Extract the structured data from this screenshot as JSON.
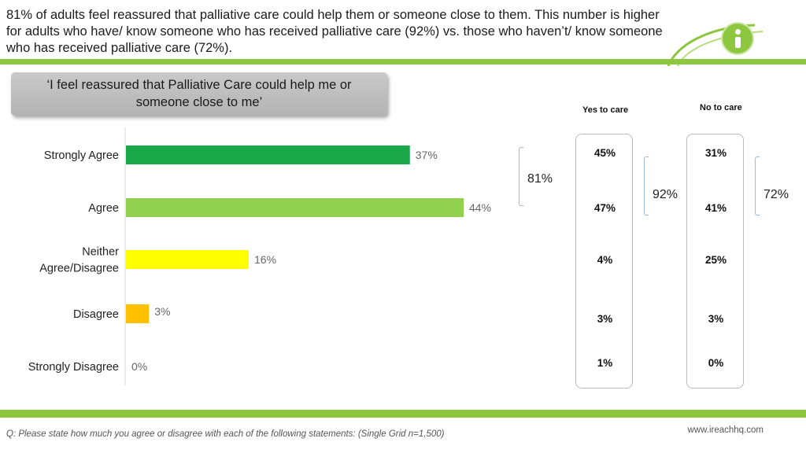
{
  "header": {
    "text": "81% of adults feel reassured that palliative care could help them or someone close to them. This number is higher for adults who have/ know someone who has received palliative care (92%) vs. those who haven’t/ know someone who has received palliative care (72%)."
  },
  "statement": {
    "line1": "‘I feel reassured that Palliative Care could help me or",
    "line2": "someone close to me’"
  },
  "chart_data": {
    "type": "bar",
    "orientation": "horizontal",
    "categories": [
      "Strongly Agree",
      "Agree",
      "Neither Agree/Disagree",
      "Disagree",
      "Strongly Disagree"
    ],
    "category_lines": [
      [
        "Strongly Agree"
      ],
      [
        "Agree"
      ],
      [
        "Neither",
        "Agree/Disagree"
      ],
      [
        "Disagree"
      ],
      [
        "Strongly Disagree"
      ]
    ],
    "values": [
      37,
      44,
      16,
      3,
      0
    ],
    "value_labels": [
      "37%",
      "44%",
      "16%",
      "3%",
      "0%"
    ],
    "colors": [
      "#1aa84a",
      "#92d050",
      "#ffff00",
      "#ffc000",
      "#ffc000"
    ],
    "xlim": [
      0,
      44
    ],
    "grid": false,
    "total_agree": "81%"
  },
  "columns": [
    {
      "header": "Yes to care",
      "values": [
        "45%",
        "47%",
        "4%",
        "3%",
        "1%"
      ],
      "agree_total": "92%"
    },
    {
      "header": "No to care",
      "values": [
        "31%",
        "41%",
        "25%",
        "3%",
        "0%"
      ],
      "agree_total": "72%"
    }
  ],
  "footer": {
    "note": "Q: Please state how much you agree or disagree with each of the following statements: (Single Grid n=1,500)",
    "site": "www.ireachhq.com"
  },
  "colors": {
    "brand_green": "#8dc63f"
  },
  "icons": {
    "info": "info-icon"
  }
}
